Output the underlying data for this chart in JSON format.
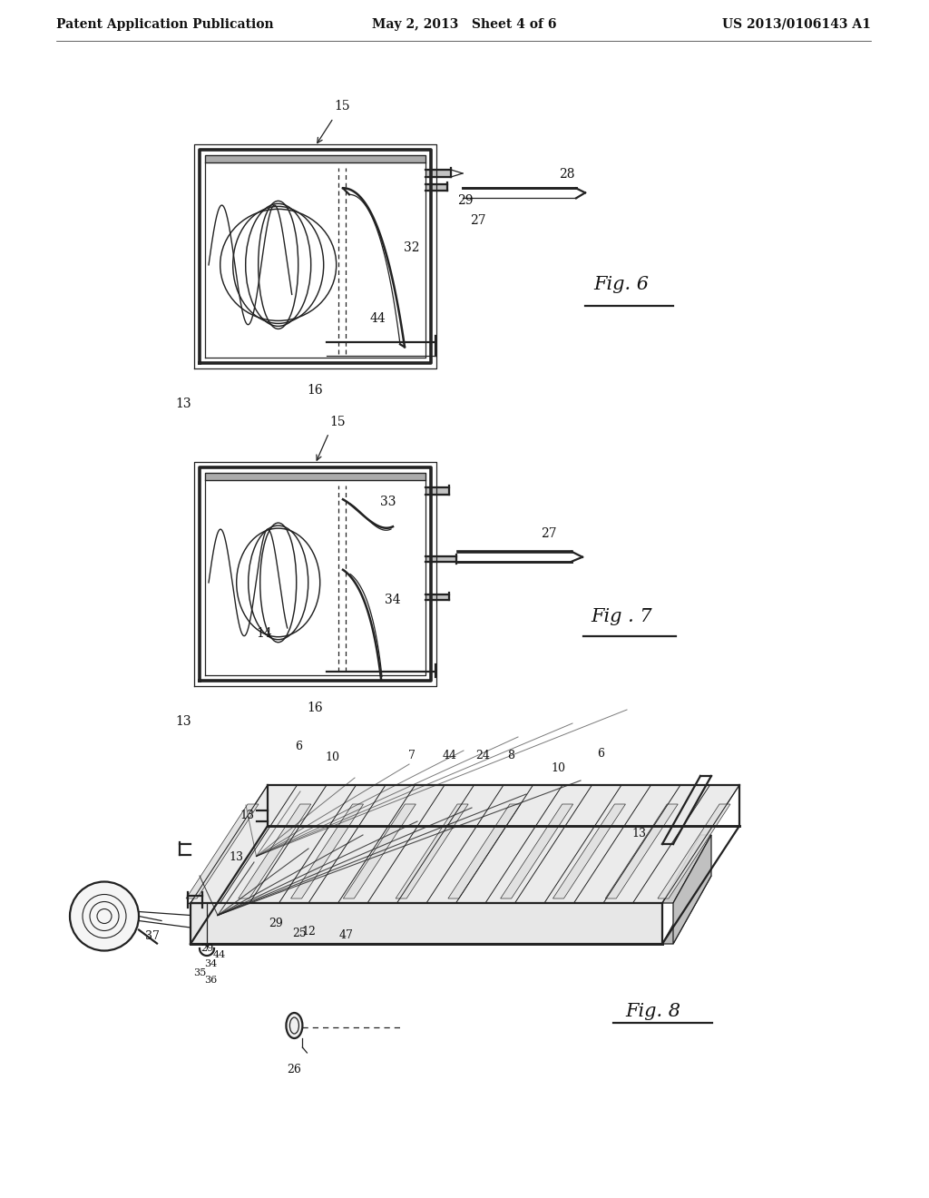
{
  "background_color": "#ffffff",
  "header_left": "Patent Application Publication",
  "header_center": "May 2, 2013   Sheet 4 of 6",
  "header_right": "US 2013/0106143 A1",
  "line_color": "#222222",
  "label_color": "#111111",
  "lw": 1.6,
  "tlw": 0.9
}
